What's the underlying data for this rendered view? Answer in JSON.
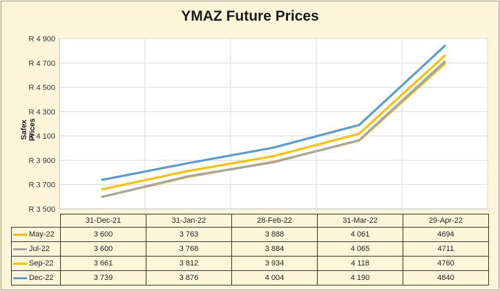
{
  "chart_data": {
    "type": "line",
    "title": "YMAZ Future Prices",
    "ylabel": "Safex Prices",
    "xlabel": "",
    "categories": [
      "31-Dec-21",
      "31-Jan-22",
      "28-Feb-22",
      "31-Mar-22",
      "29-Apr-22"
    ],
    "ylim": [
      3500,
      4900
    ],
    "yticks": [
      3500,
      3700,
      3900,
      4100,
      4300,
      4500,
      4700,
      4900
    ],
    "ytick_labels": [
      "R 3 500",
      "R 3 700",
      "R 3 900",
      "R 4 100",
      "R 4 300",
      "R 4 500",
      "R 4 700",
      "R 4 900"
    ],
    "grid": true,
    "legend": "data table below the plot",
    "series": [
      {
        "name": "May-22",
        "color": "#f0c000",
        "values": [
          3600,
          3763,
          3888,
          4061,
          4694
        ],
        "labels": [
          "3 600",
          "3 763",
          "3 888",
          "4 061",
          "4694"
        ]
      },
      {
        "name": "Jul-22",
        "color": "#a5a5a5",
        "values": [
          3600,
          3768,
          3884,
          4065,
          4711
        ],
        "labels": [
          "3 600",
          "3 768",
          "3 884",
          "4 065",
          "4711"
        ]
      },
      {
        "name": "Sep-22",
        "color": "#ffc000",
        "values": [
          3661,
          3812,
          3934,
          4118,
          4760
        ],
        "labels": [
          "3 661",
          "3 812",
          "3 934",
          "4 118",
          "4760"
        ]
      },
      {
        "name": "Dec-22",
        "color": "#5b9bd5",
        "values": [
          3739,
          3876,
          4004,
          4190,
          4840
        ],
        "labels": [
          "3 739",
          "3 876",
          "4 004",
          "4 190",
          "4840"
        ]
      }
    ]
  }
}
